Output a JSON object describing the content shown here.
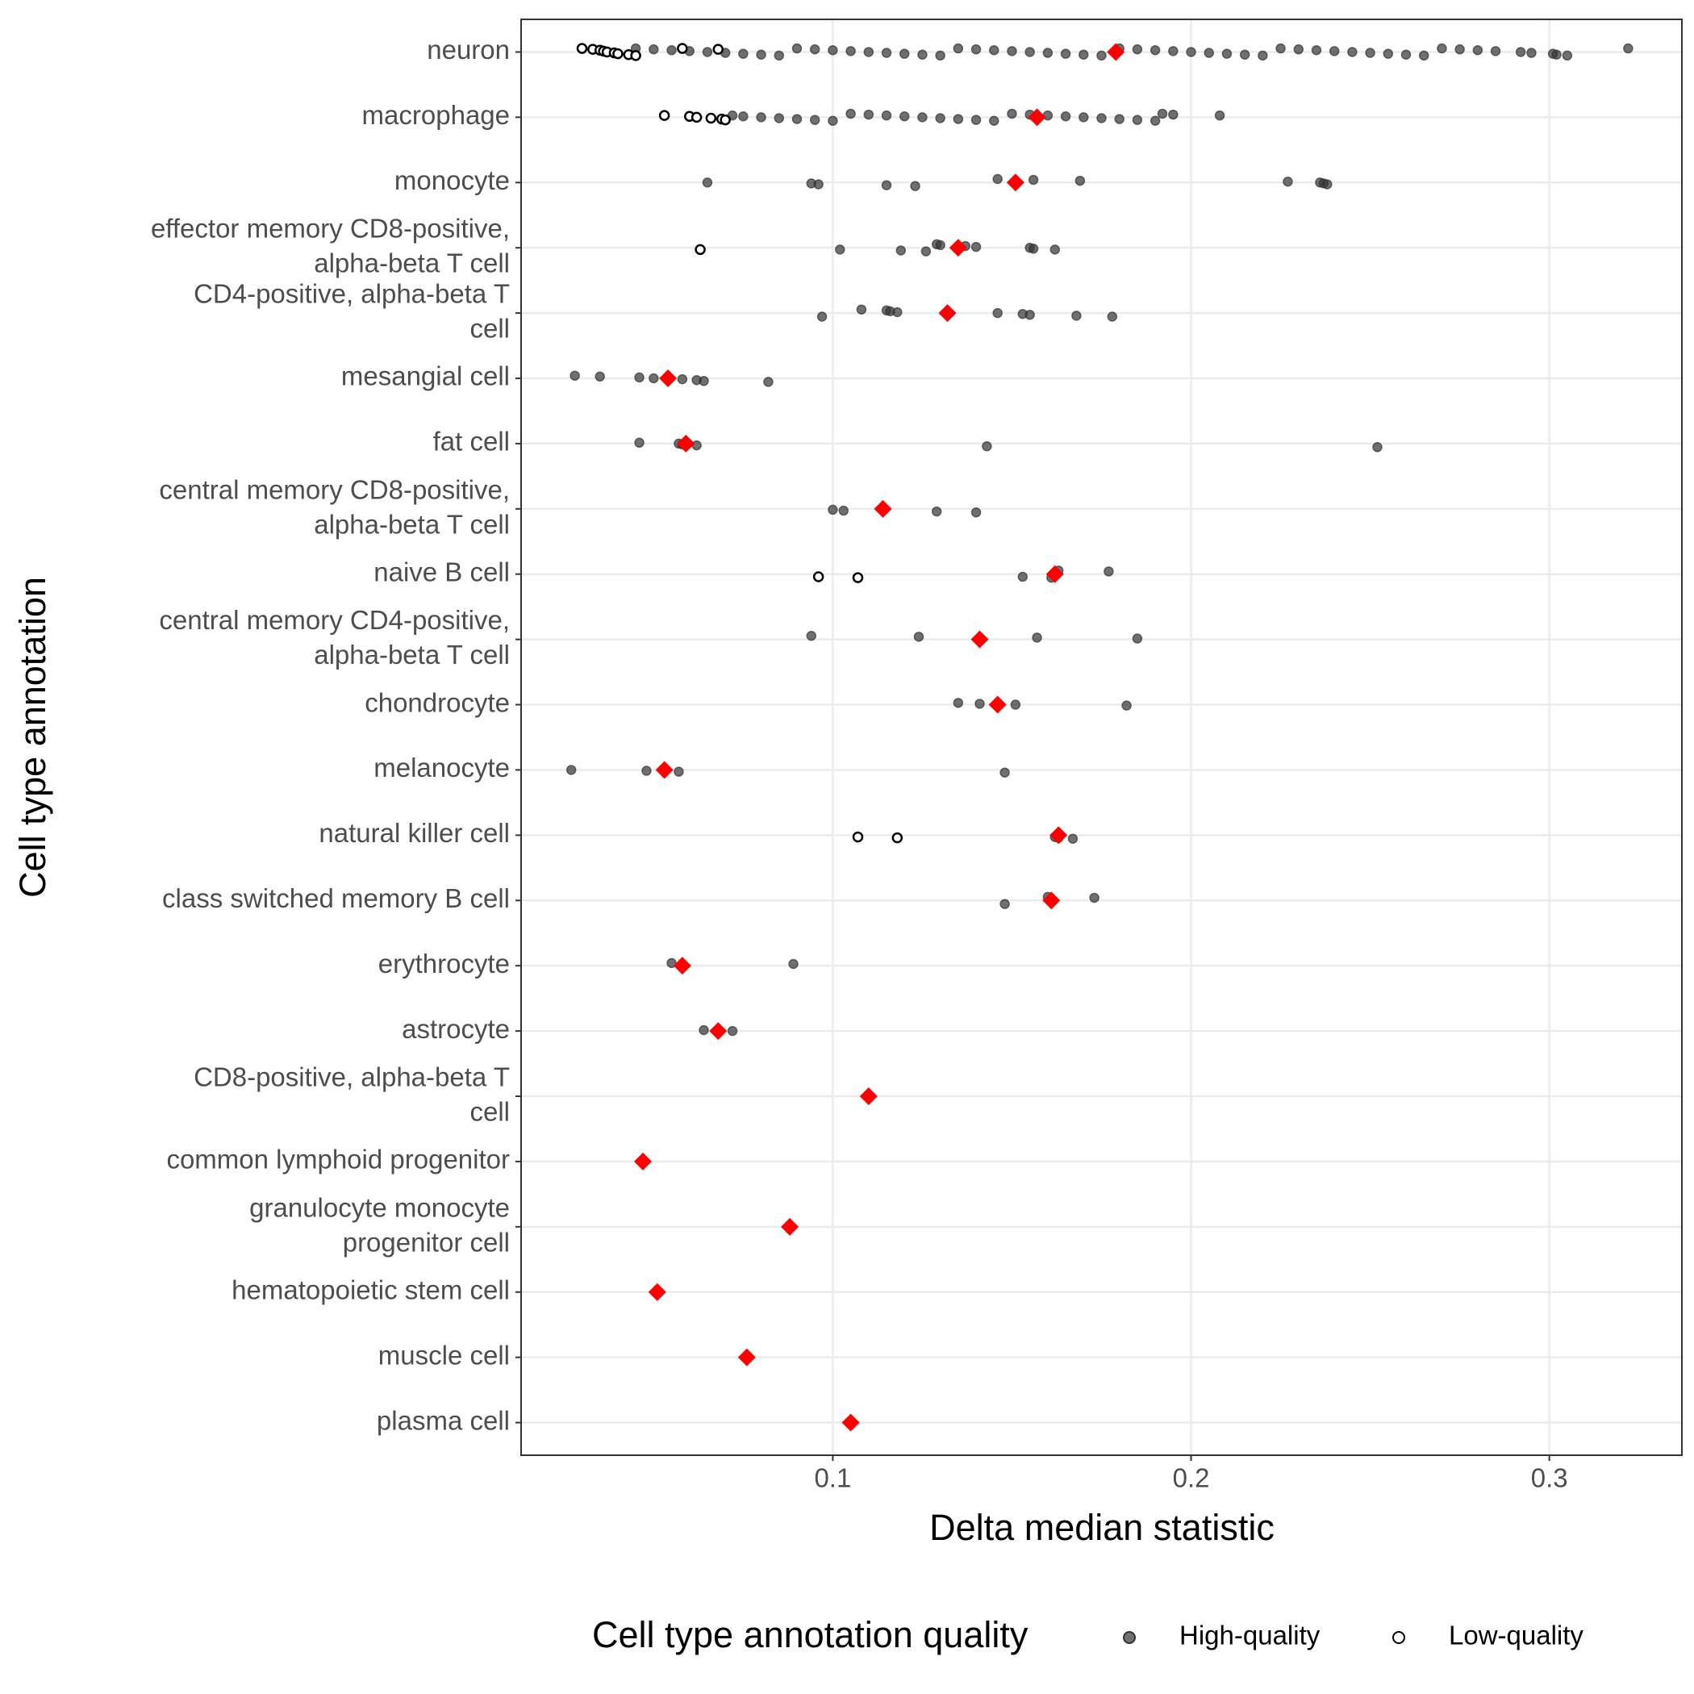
{
  "chart_data": {
    "type": "strip",
    "xlabel": "Delta median statistic",
    "ylabel": "Cell type annotation",
    "legend_title": "Cell type annotation quality",
    "categories": [
      "neuron",
      "macrophage",
      "monocyte",
      [
        "effector memory CD8-positive,",
        "alpha-beta T cell"
      ],
      [
        "CD4-positive, alpha-beta T",
        "cell"
      ],
      "mesangial cell",
      "fat cell",
      [
        "central memory CD8-positive,",
        "alpha-beta T cell"
      ],
      "naive B cell",
      [
        "central memory CD4-positive,",
        "alpha-beta T cell"
      ],
      "chondrocyte",
      "melanocyte",
      "natural killer cell",
      "class switched memory B cell",
      "erythrocyte",
      "astrocyte",
      [
        "CD8-positive, alpha-beta T",
        "cell"
      ],
      "common lymphoid progenitor",
      [
        "granulocyte monocyte",
        "progenitor cell"
      ],
      "hematopoietic stem cell",
      "muscle cell",
      "plasma cell"
    ],
    "xlim": [
      0.013,
      0.337
    ],
    "xticks": [
      0.1,
      0.2,
      0.3
    ],
    "grid": true,
    "series": [
      {
        "name": "High-quality",
        "color": "#333333",
        "filled": true,
        "values": [
          [
            0.045,
            0.05,
            0.055,
            0.06,
            0.065,
            0.07,
            0.075,
            0.08,
            0.085,
            0.09,
            0.095,
            0.1,
            0.105,
            0.11,
            0.115,
            0.12,
            0.125,
            0.13,
            0.135,
            0.14,
            0.145,
            0.15,
            0.155,
            0.16,
            0.165,
            0.17,
            0.175,
            0.18,
            0.185,
            0.19,
            0.195,
            0.2,
            0.205,
            0.21,
            0.215,
            0.22,
            0.225,
            0.23,
            0.235,
            0.24,
            0.245,
            0.25,
            0.255,
            0.26,
            0.265,
            0.27,
            0.275,
            0.28,
            0.285,
            0.292,
            0.295,
            0.301,
            0.302,
            0.305,
            0.322
          ],
          [
            0.072,
            0.075,
            0.08,
            0.085,
            0.09,
            0.095,
            0.1,
            0.105,
            0.11,
            0.115,
            0.12,
            0.125,
            0.13,
            0.135,
            0.14,
            0.145,
            0.15,
            0.155,
            0.16,
            0.165,
            0.17,
            0.175,
            0.18,
            0.185,
            0.19,
            0.192,
            0.195,
            0.208
          ],
          [
            0.065,
            0.094,
            0.096,
            0.115,
            0.123,
            0.146,
            0.156,
            0.169,
            0.227,
            0.236,
            0.237,
            0.238
          ],
          [
            0.102,
            0.119,
            0.126,
            0.129,
            0.13,
            0.137,
            0.14,
            0.155,
            0.156,
            0.162
          ],
          [
            0.097,
            0.108,
            0.115,
            0.116,
            0.118,
            0.146,
            0.153,
            0.155,
            0.168,
            0.178
          ],
          [
            0.028,
            0.035,
            0.046,
            0.05,
            0.058,
            0.062,
            0.064,
            0.082
          ],
          [
            0.046,
            0.057,
            0.058,
            0.062,
            0.143,
            0.252
          ],
          [
            0.1,
            0.103,
            0.129,
            0.14
          ],
          [
            0.153,
            0.161,
            0.163,
            0.177
          ],
          [
            0.094,
            0.124,
            0.157,
            0.185
          ],
          [
            0.135,
            0.141,
            0.151,
            0.182
          ],
          [
            0.027,
            0.048,
            0.057,
            0.148
          ],
          [
            0.162,
            0.163,
            0.167
          ],
          [
            0.148,
            0.16,
            0.173
          ],
          [
            0.055,
            0.089
          ],
          [
            0.064,
            0.072
          ],
          [],
          [],
          [],
          [],
          [],
          []
        ]
      },
      {
        "name": "Low-quality",
        "color": "#000000",
        "filled": false,
        "values": [
          [
            0.03,
            0.033,
            0.035,
            0.036,
            0.037,
            0.039,
            0.04,
            0.043,
            0.045,
            0.058,
            0.068
          ],
          [
            0.053,
            0.06,
            0.062,
            0.066,
            0.069,
            0.07
          ],
          [],
          [
            0.063
          ],
          [],
          [],
          [],
          [],
          [
            0.096,
            0.107
          ],
          [],
          [],
          [],
          [
            0.107,
            0.118
          ],
          [],
          [],
          [],
          [],
          [],
          [],
          [],
          [],
          []
        ]
      }
    ],
    "medians": {
      "color": "#ff0000",
      "values": [
        0.179,
        0.157,
        0.151,
        0.135,
        0.132,
        0.054,
        0.059,
        0.114,
        0.162,
        0.141,
        0.146,
        0.053,
        0.163,
        0.161,
        0.058,
        0.068,
        0.11,
        0.047,
        0.088,
        0.051,
        0.076,
        0.105
      ]
    }
  }
}
